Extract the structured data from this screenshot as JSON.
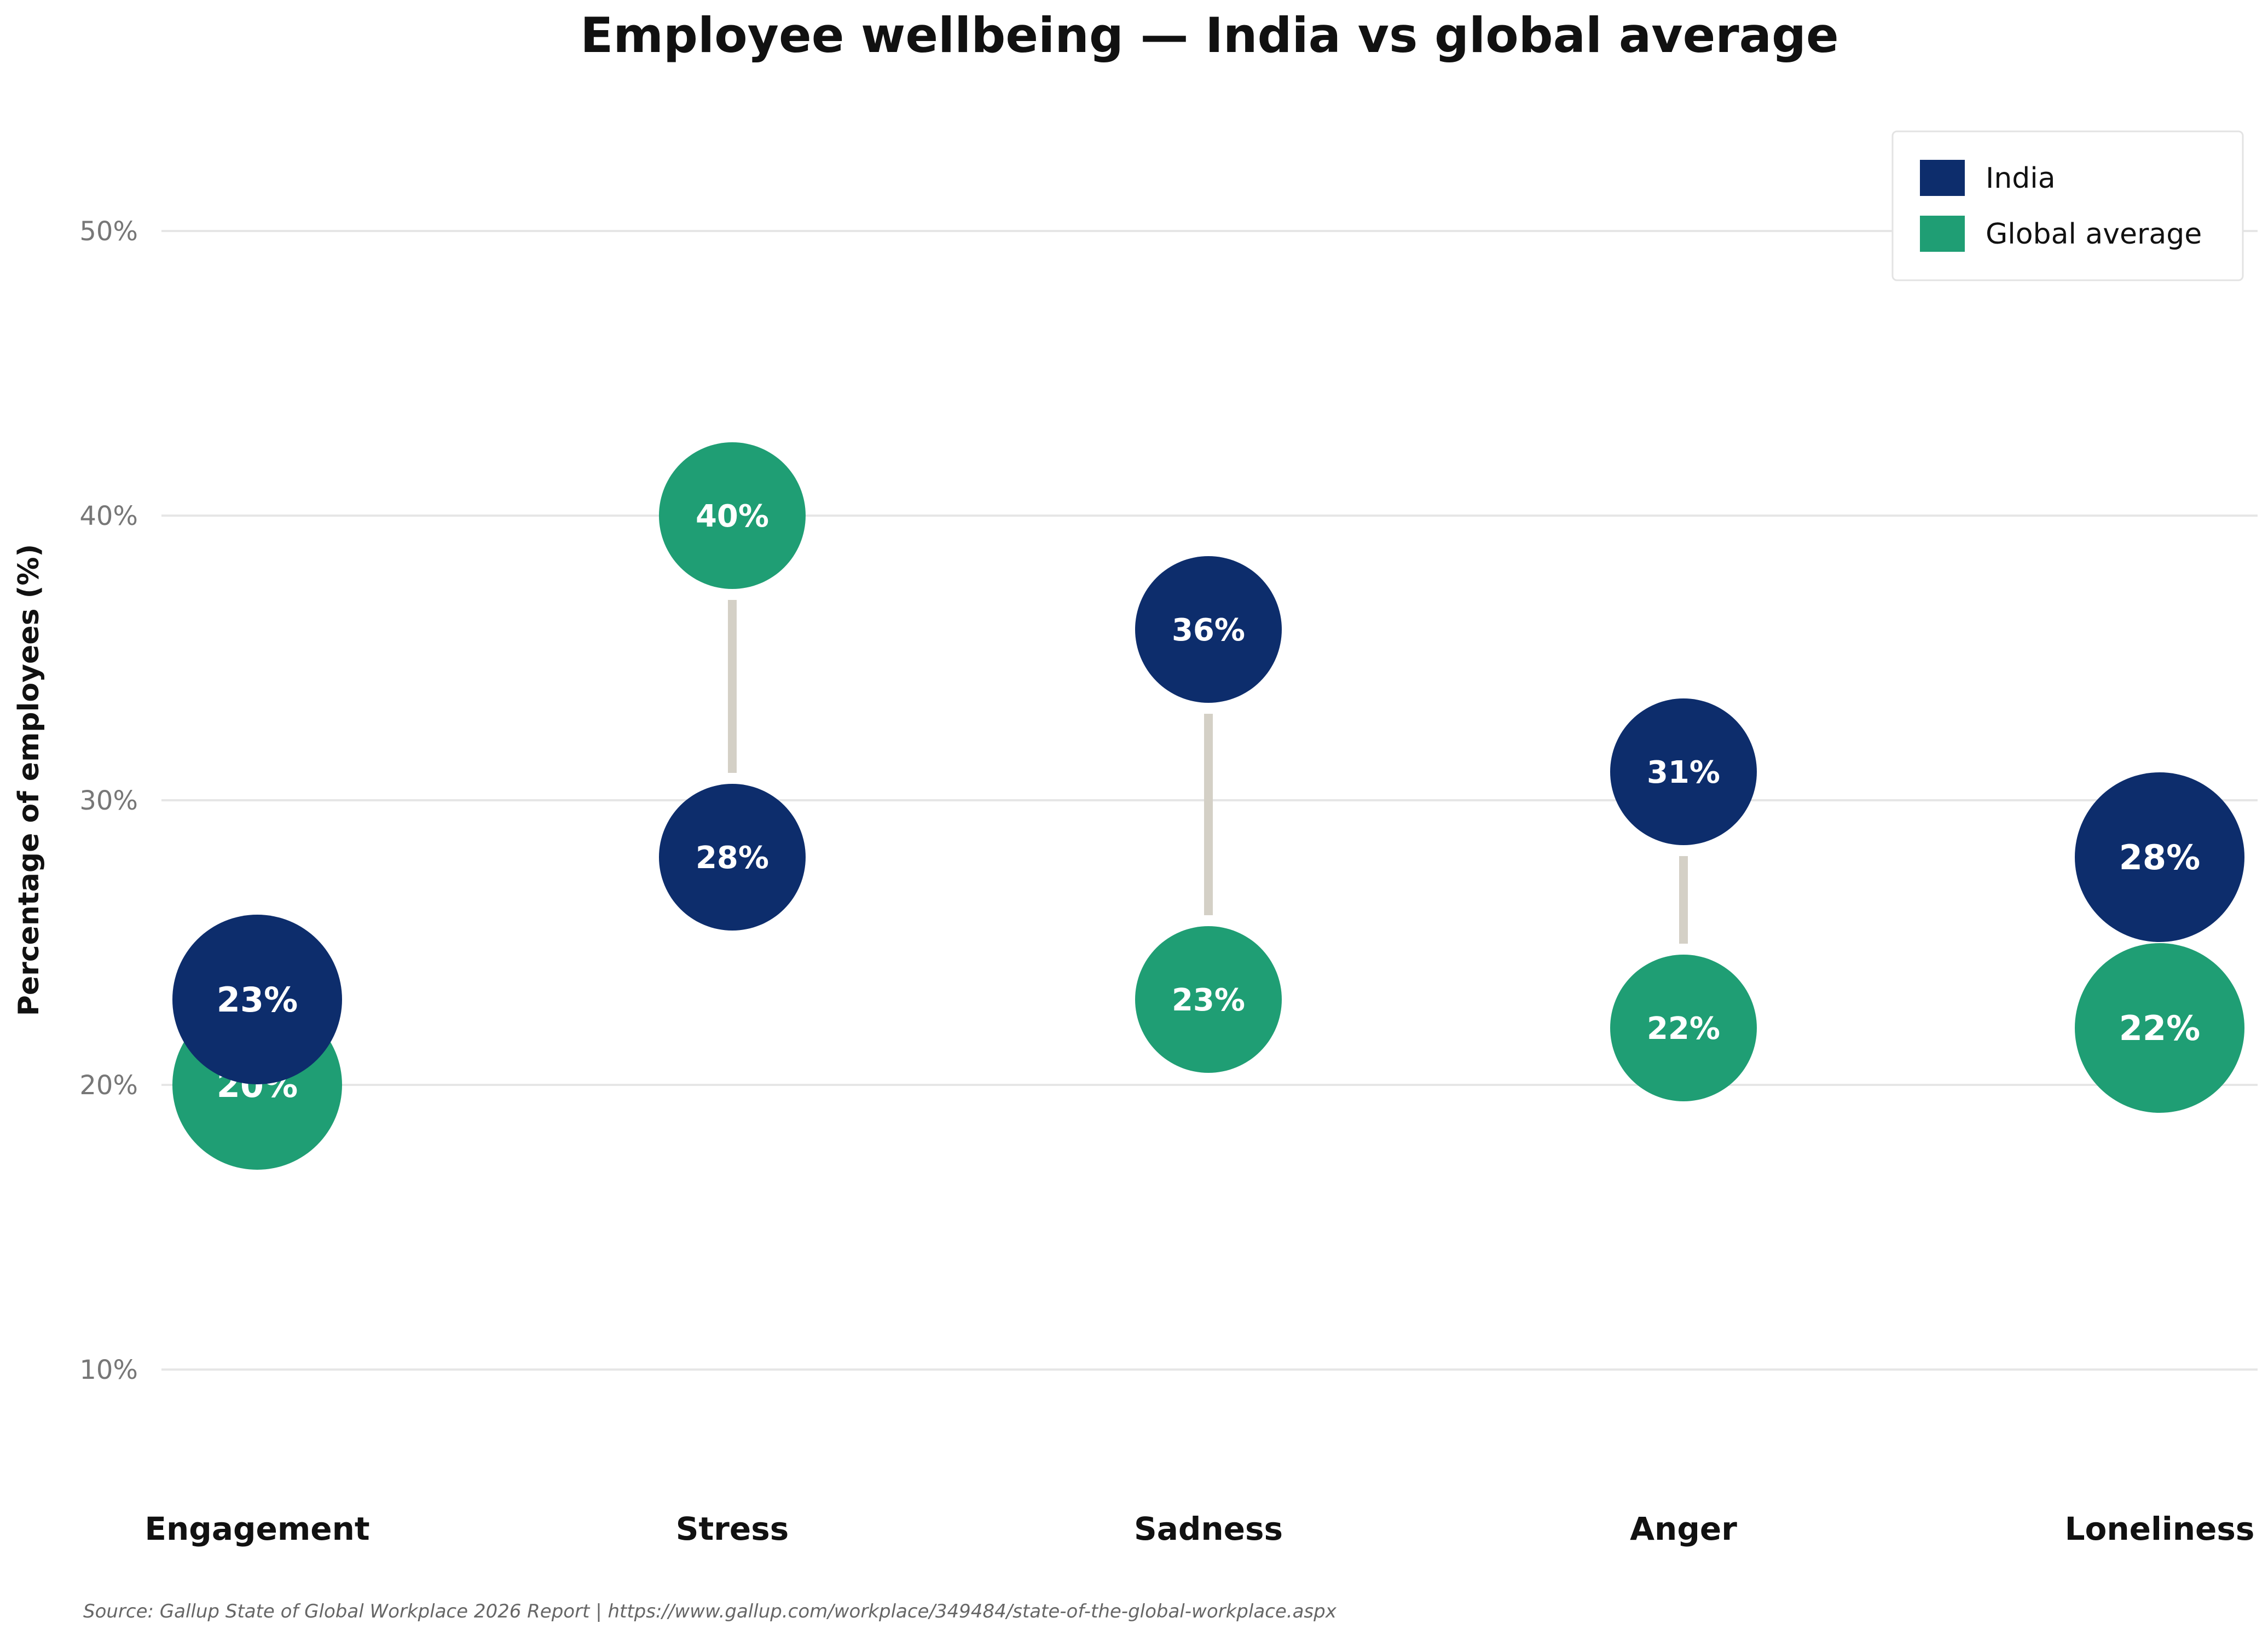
{
  "chart_data": {
    "type": "scatter",
    "title": "Employee wellbeing — India vs global average",
    "xlabel": "",
    "ylabel": "Percentage of employees (%)",
    "categories": [
      "Engagement",
      "Stress",
      "Sadness",
      "Anger",
      "Loneliness"
    ],
    "series": [
      {
        "name": "India",
        "values": [
          23,
          28,
          36,
          31,
          28
        ],
        "color": "#0d2d6c"
      },
      {
        "name": "Global average",
        "values": [
          20,
          40,
          23,
          22,
          22
        ],
        "color": "#1f9e74"
      }
    ],
    "value_labels": {
      "India": [
        "23%",
        "28%",
        "36%",
        "31%",
        "28%"
      ],
      "Global average": [
        "20%",
        "40%",
        "23%",
        "22%",
        "22%"
      ]
    },
    "ylim": [
      6,
      54
    ],
    "yticks": [
      10,
      20,
      30,
      40,
      50
    ],
    "ytick_labels": [
      "10%",
      "20%",
      "30%",
      "40%",
      "50%"
    ],
    "grid": true,
    "legend_position": "top-right",
    "connector_color": "#d4d0c6"
  },
  "source": "Source: Gallup State of Global Workplace 2026 Report  |  https://www.gallup.com/workplace/349484/state-of-the-global-workplace.aspx"
}
